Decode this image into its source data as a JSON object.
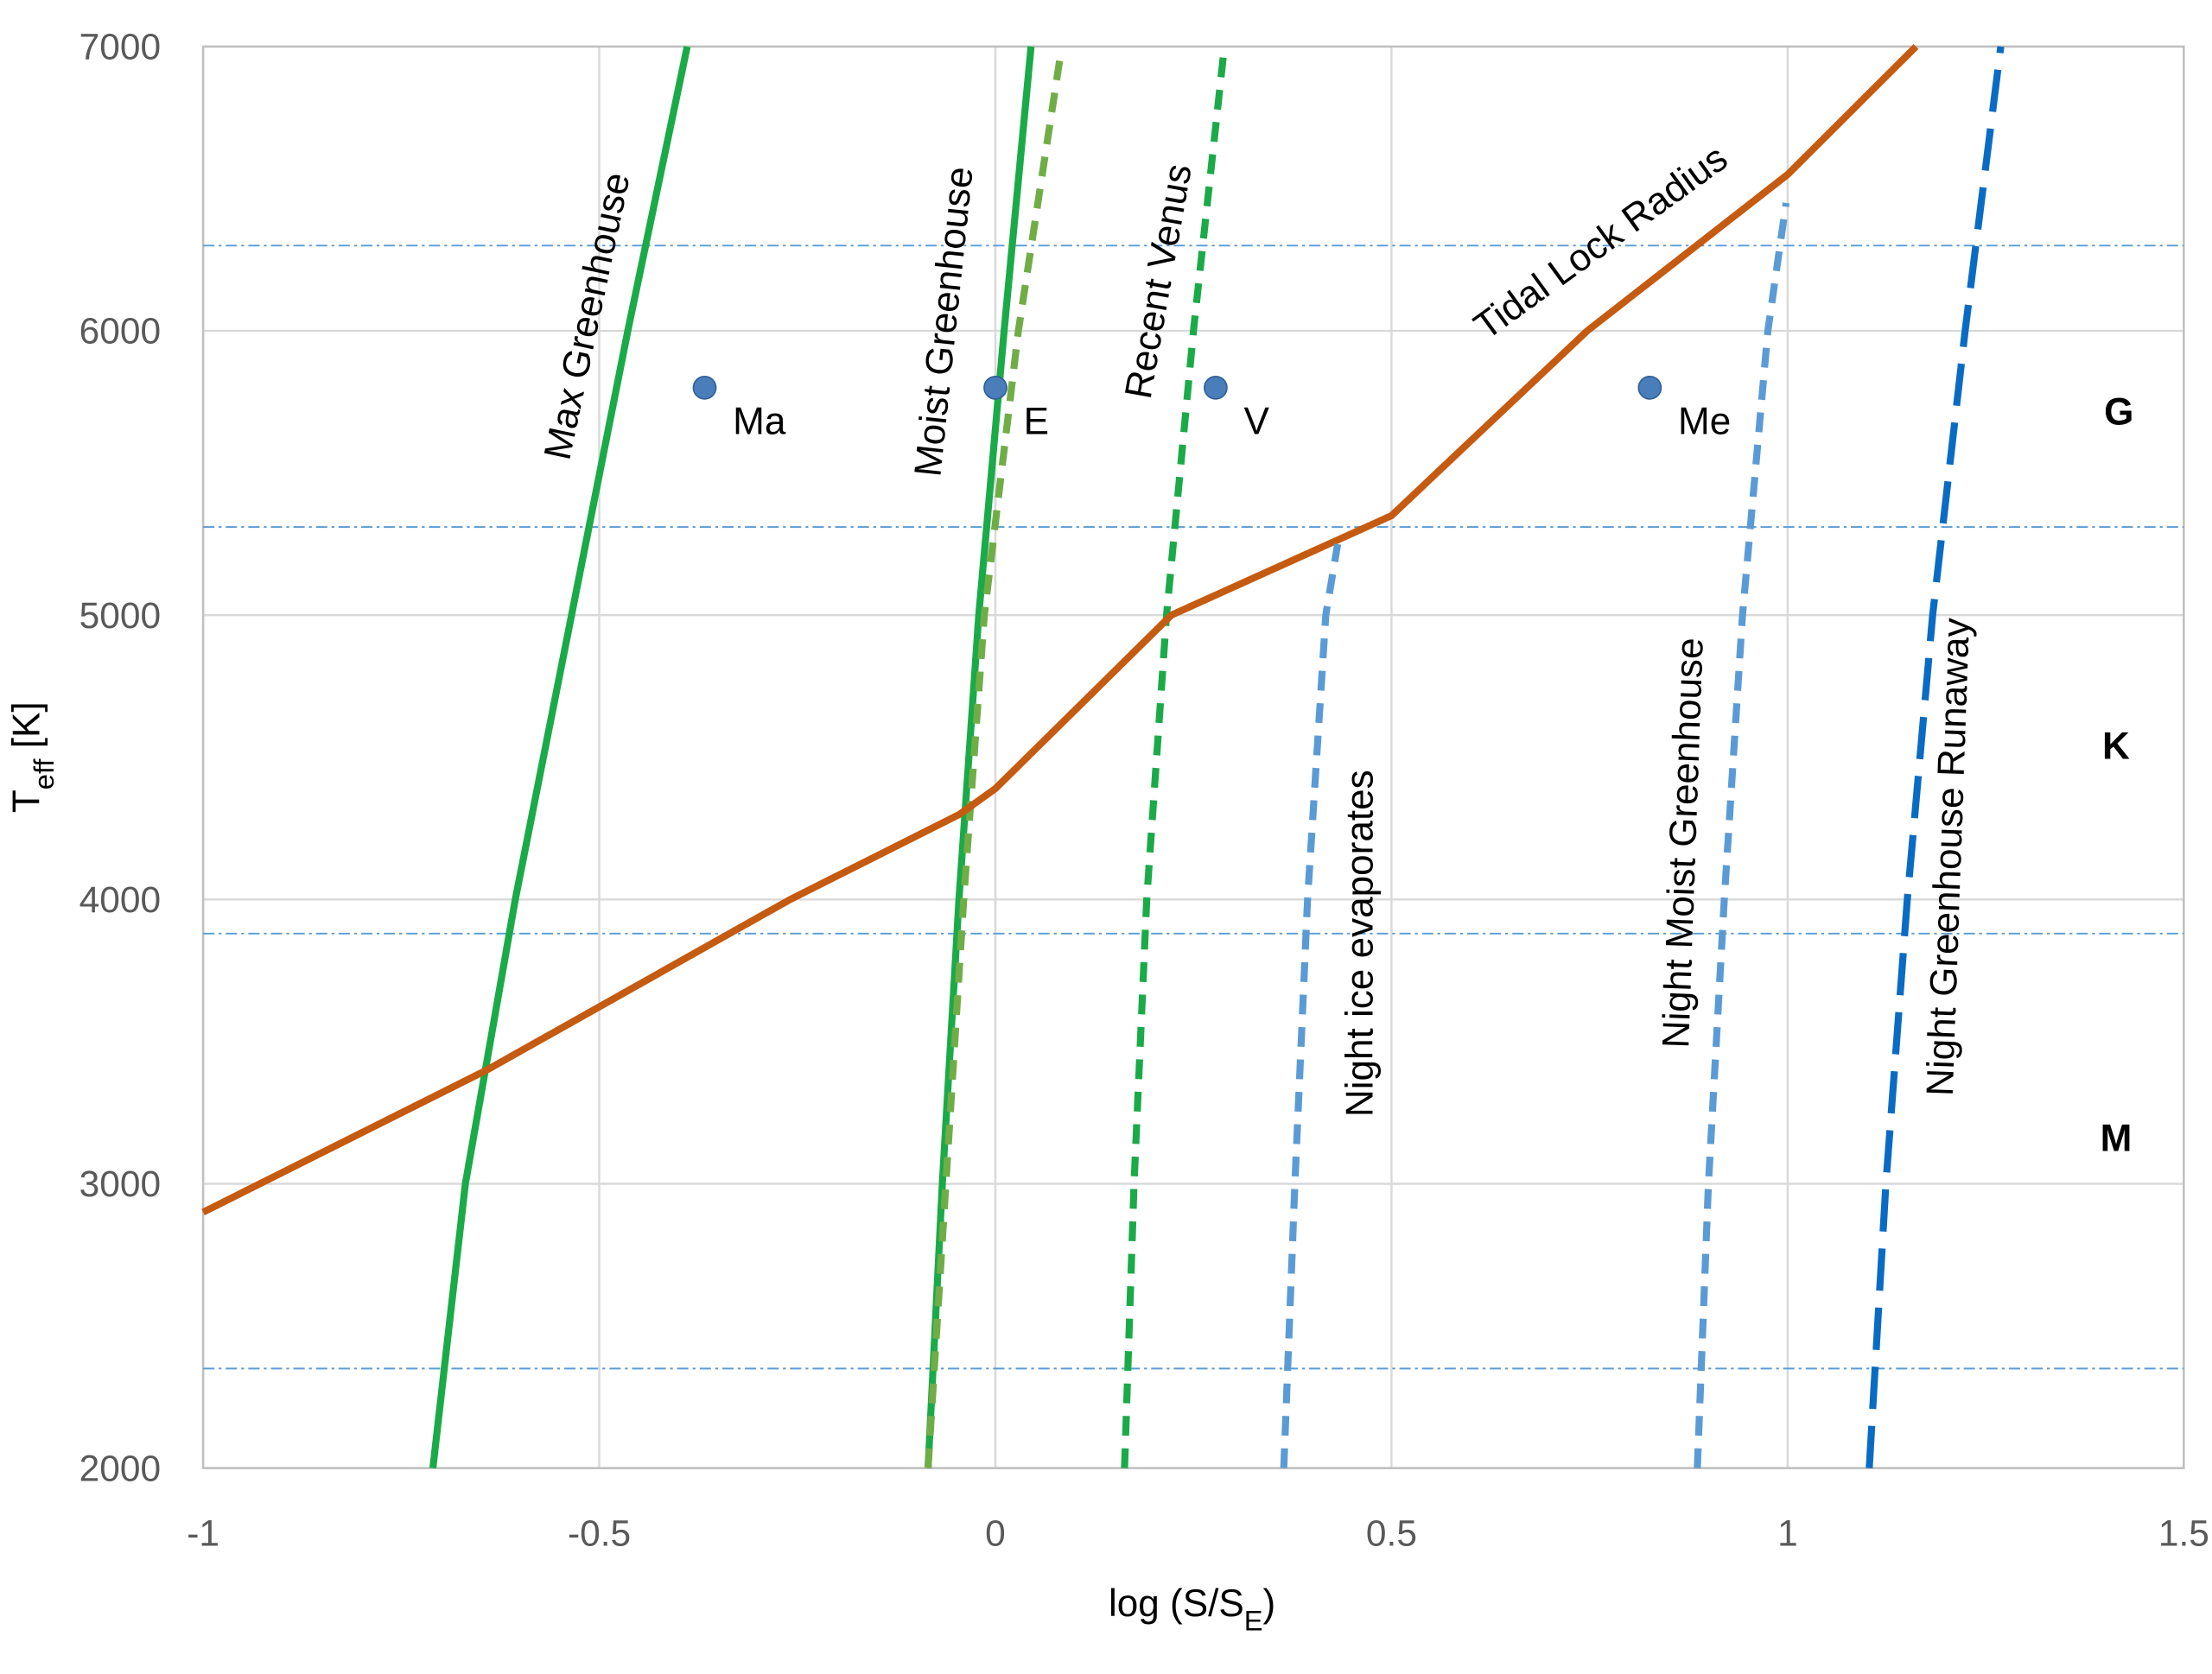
{
  "chart_data": {
    "type": "line",
    "xlabel": [
      "log (S/S",
      "E",
      ")"
    ],
    "ylabel": [
      "T",
      "eff",
      " [K]"
    ],
    "xlim": [
      -1,
      1.5
    ],
    "xticks": [
      -1,
      -0.5,
      0,
      0.5,
      1,
      1.5
    ],
    "ylim": [
      2000,
      7000
    ],
    "yticks": [
      2000,
      3000,
      4000,
      5000,
      6000,
      7000
    ],
    "grid": true,
    "series": [
      {
        "name": "Max Greenhouse",
        "color": "#1aaa48",
        "dash": "solid",
        "x": [
          -0.71,
          -0.669,
          -0.606,
          -0.535,
          -0.464,
          -0.389
        ],
        "values": [
          2000,
          3000,
          4000,
          5000,
          6000,
          7000
        ]
      },
      {
        "name": "Moist Greenhouse",
        "color": "#1aaa48",
        "dash": "solid",
        "x": [
          -0.085,
          -0.067,
          -0.046,
          -0.021,
          0.011,
          0.045
        ],
        "values": [
          2000,
          3000,
          4000,
          5000,
          6000,
          7000
        ]
      },
      {
        "color": "#70ad47",
        "dash": "dashed",
        "x": [
          -0.085,
          -0.04,
          -0.014,
          0.029,
          0.081
        ],
        "values": [
          2000,
          4000,
          5000,
          6000,
          6950
        ]
      },
      {
        "name": "Recent Venus",
        "color": "#1aaa48",
        "dash": "dashed",
        "x": [
          0.163,
          0.175,
          0.191,
          0.216,
          0.25,
          0.289
        ],
        "values": [
          2000,
          3000,
          4000,
          5000,
          6000,
          7000
        ]
      },
      {
        "name": "Tidal Lock Radius",
        "color": "#c55a11",
        "dash": "solid",
        "x": [
          -1,
          -0.642,
          -0.259,
          -0.045,
          0,
          0.222,
          0.5,
          0.747,
          1.0,
          1.162
        ],
        "values": [
          2900,
          3400,
          4000,
          4300,
          4390,
          5000,
          5350,
          6000,
          6550,
          7000
        ]
      },
      {
        "name": "Night ice evaporates",
        "color": "#5b9bd5",
        "dash": "dashed",
        "x": [
          0.364,
          0.378,
          0.394,
          0.417,
          0.432
        ],
        "values": [
          2000,
          3000,
          4000,
          5000,
          5250
        ]
      },
      {
        "name": "Night Moist Greenhouse",
        "color": "#5b9bd5",
        "dash": "dashed",
        "x": [
          0.886,
          0.9,
          0.92,
          0.943,
          0.975,
          0.998
        ],
        "values": [
          2000,
          3000,
          4000,
          5000,
          6000,
          6450
        ]
      },
      {
        "name": "Night Greenhouse Runaway",
        "color": "#0a6bc4",
        "dash": "longdash",
        "x": [
          1.103,
          1.124,
          1.151,
          1.183,
          1.224,
          1.269
        ],
        "values": [
          2000,
          3000,
          4000,
          5000,
          6000,
          7000
        ]
      }
    ],
    "points": {
      "color": "#4a7ebb",
      "labels": [
        "Ma",
        "E",
        "V",
        "Me"
      ],
      "x": [
        -0.367,
        0,
        0.278,
        0.826
      ],
      "values": [
        5800,
        5800,
        5800,
        5800
      ]
    },
    "boundaries": {
      "color": "#5b9bd5",
      "values": [
        6300,
        5310,
        3880,
        2350
      ]
    },
    "classes": [
      "G",
      "K",
      "M"
    ]
  }
}
